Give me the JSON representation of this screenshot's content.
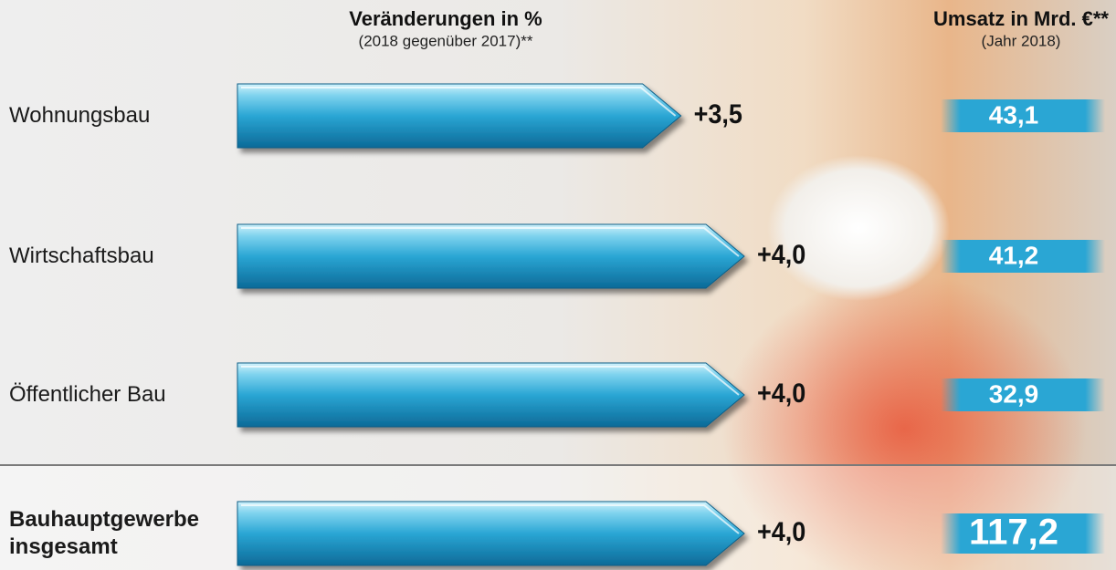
{
  "chart_data": {
    "type": "bar",
    "orientation": "horizontal",
    "title": "Veränderungen in %",
    "subtitle": "(2018 gegenüber 2017)**",
    "categories": [
      "Wohnungsbau",
      "Wirtschaftsbau",
      "Öffentlicher Bau",
      "Bauhauptgewerbe insgesamt"
    ],
    "values": [
      3.5,
      4.0,
      4.0,
      4.0
    ],
    "value_labels": [
      "+3,5",
      "+4,0",
      "+4,0",
      "+4,0"
    ],
    "color": "#2aa6d4",
    "revenue": {
      "title": "Umsatz in Mrd. €**",
      "subtitle": "(Jahr 2018)",
      "values": [
        43.1,
        41.2,
        32.9,
        117.2
      ],
      "value_labels": [
        "43,1",
        "41,2",
        "32,9",
        "117,2"
      ]
    }
  }
}
